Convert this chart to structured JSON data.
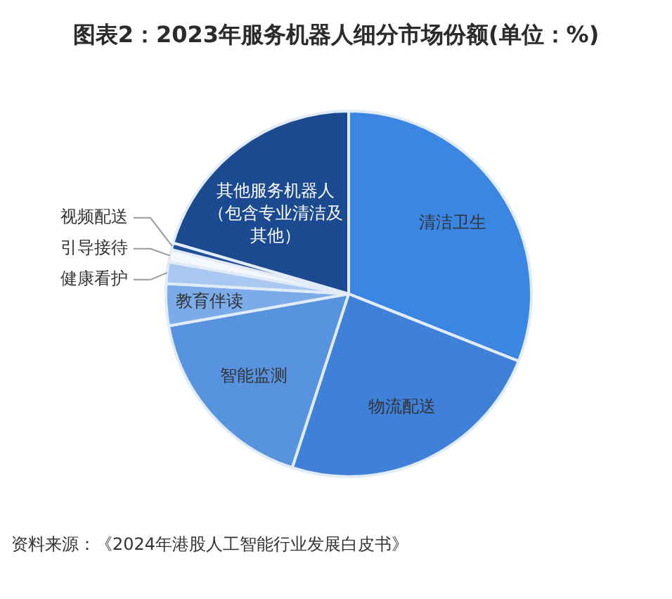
{
  "chart_data": {
    "type": "pie",
    "title": "图表2：2023年服务机器人细分市场份额(单位：%)",
    "categories": [
      "清洁卫生",
      "物流配送",
      "智能监测",
      "教育伴读",
      "健康看护",
      "引导接待",
      "视频配送",
      "其他服务机器人（包含专业清洁及其他）"
    ],
    "values": [
      31,
      24,
      17.2,
      3.7,
      1.9,
      1.1,
      0.6,
      20.5
    ],
    "colors": [
      "#3a86e2",
      "#3f80d8",
      "#5893e0",
      "#7babe9",
      "#a9c8f1",
      "#f4f8fd",
      "#1f4f98",
      "#1c4a91"
    ],
    "annotations": [
      "资料来源：《2024年港股人工智能行业发展白皮书》"
    ]
  }
}
